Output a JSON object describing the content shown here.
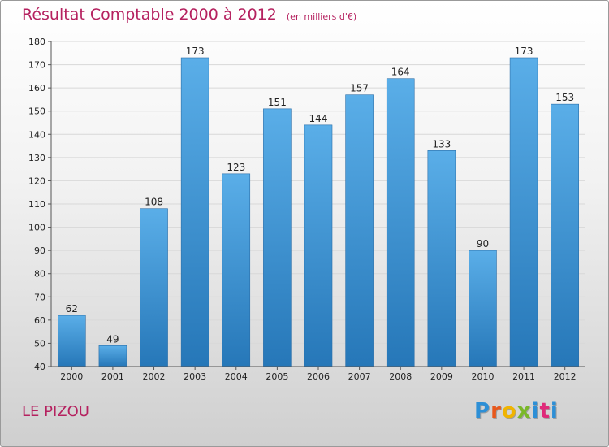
{
  "title": "Résultat Comptable 2000 à 2012",
  "unit": "(en milliers d'€)",
  "city": "LE PIZOU",
  "logo": [
    "P",
    "r",
    "o",
    "x",
    "i",
    "t",
    "i"
  ],
  "colors": {
    "title": "#b5215f",
    "bar_top": "#5aaee8",
    "bar_bottom": "#2677b8",
    "grid": "#d8d8d8"
  },
  "chart_data": {
    "type": "bar",
    "title": "Résultat Comptable 2000 à 2012",
    "xlabel": "",
    "ylabel": "",
    "categories": [
      "2000",
      "2001",
      "2002",
      "2003",
      "2004",
      "2005",
      "2006",
      "2007",
      "2008",
      "2009",
      "2010",
      "2011",
      "2012"
    ],
    "values": [
      62,
      49,
      108,
      173,
      123,
      151,
      144,
      157,
      164,
      133,
      90,
      173,
      153
    ],
    "ylim": [
      40,
      180
    ],
    "yticks": [
      40,
      50,
      60,
      70,
      80,
      90,
      100,
      110,
      120,
      130,
      140,
      150,
      160,
      170,
      180
    ],
    "grid": true
  }
}
